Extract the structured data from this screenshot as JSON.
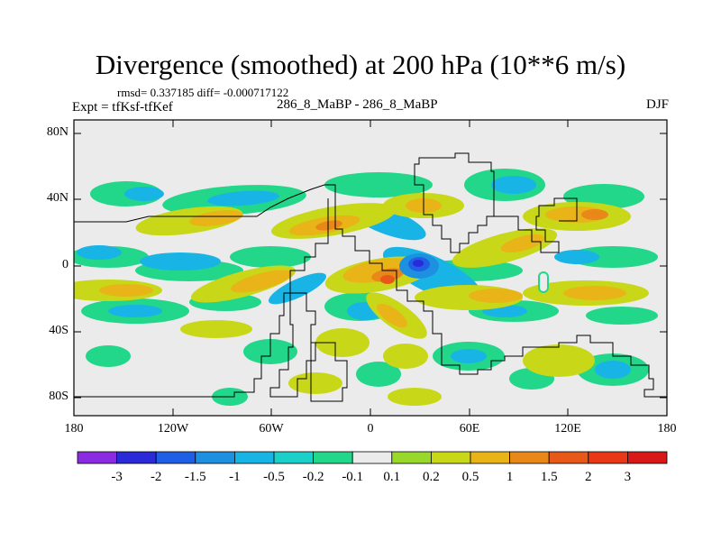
{
  "title": "Divergence (smoothed) at 200 hPa (10**6 m/s)",
  "stats": "rmsd= 0.337185  diff= -0.000717122",
  "expt": "Expt = tfKsf-tfKef",
  "center_label": "286_8_MaBP - 286_8_MaBP",
  "season": "DJF",
  "y_ticks": [
    "80N",
    "40N",
    "0",
    "40S",
    "80S"
  ],
  "x_ticks": [
    "180",
    "120W",
    "60W",
    "0",
    "60E",
    "120E",
    "180"
  ],
  "colorbar": {
    "colors": [
      "#8a2be2",
      "#2a2ad8",
      "#1f5fe6",
      "#1e90e0",
      "#19b4e6",
      "#1ad0c8",
      "#22d68a",
      "#ebebeb",
      "#98d82a",
      "#c8d818",
      "#e8b418",
      "#e88818",
      "#e85818",
      "#e83818",
      "#d81818"
    ],
    "labels": [
      "-3",
      "-2",
      "-1.5",
      "-1",
      "-0.5",
      "-0.2",
      "-0.1",
      "0.1",
      "0.2",
      "0.5",
      "1",
      "1.5",
      "2",
      "3"
    ]
  }
}
